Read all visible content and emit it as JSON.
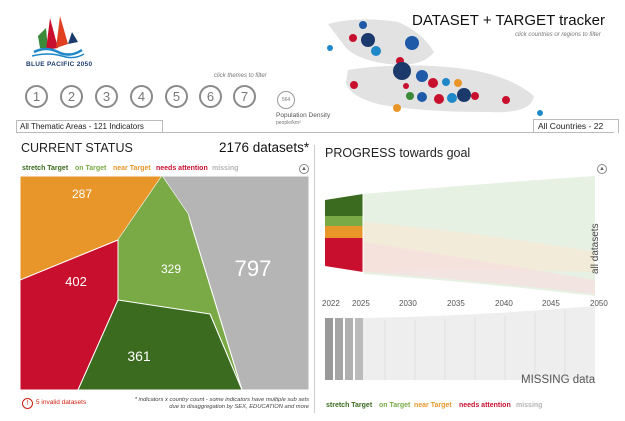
{
  "logo": {
    "text": "BLUE PACIFIC 2050"
  },
  "themes": {
    "hint": "click themes to filter",
    "items": [
      "1",
      "2",
      "3",
      "4",
      "5",
      "6",
      "7"
    ]
  },
  "population": {
    "value": "564",
    "label": "Population Density",
    "unit": "people/km²"
  },
  "tabs": {
    "areas": "All Thematic Areas - 121 Indicators",
    "countries": "All Countries - 22"
  },
  "map": {
    "title": "DATASET + TARGET tracker",
    "hint": "click countries or regions to filter"
  },
  "status": {
    "title": "CURRENT STATUS",
    "total": "2176 datasets*",
    "legend": [
      {
        "label": "stretch Target",
        "color": "#3a6b1e"
      },
      {
        "label": "on Target",
        "color": "#7aaa46"
      },
      {
        "label": "near Target",
        "color": "#e8962a"
      },
      {
        "label": "needs attention",
        "color": "#c8102e"
      },
      {
        "label": "missing",
        "color": "#b5b5b5"
      }
    ],
    "values": {
      "near": "287",
      "needs": "402",
      "on": "329",
      "stretch": "361",
      "missing": "797"
    },
    "invalid": "5 invalid datasets",
    "note": "* indicators x country count - some indicators have multiple sub sets due to disaggregation by SEX, EDUCATION and more"
  },
  "progress": {
    "title": "PROGRESS towards goal",
    "axis_label": "all datasets",
    "years": [
      "2022",
      "2025",
      "2030",
      "2035",
      "2040",
      "2045",
      "2050"
    ],
    "missing_label": "MISSING data"
  },
  "chart_data": {
    "type": "table",
    "title": "CURRENT STATUS",
    "categories": [
      "stretch Target",
      "on Target",
      "near Target",
      "needs attention",
      "missing"
    ],
    "values": [
      361,
      329,
      287,
      402,
      797
    ],
    "total": 2176
  }
}
